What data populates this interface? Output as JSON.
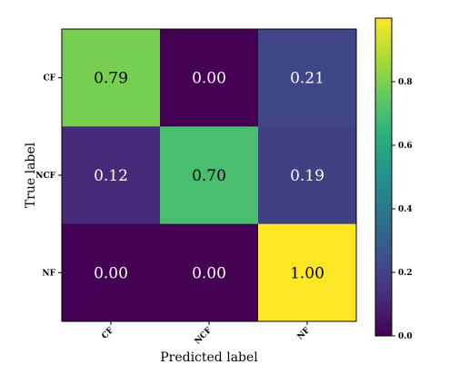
{
  "chart_data": {
    "type": "heatmap",
    "title": "",
    "xlabel": "Predicted label",
    "ylabel": "True label",
    "x_categories": [
      "CF",
      "NCF",
      "NF"
    ],
    "y_categories": [
      "CF",
      "NCF",
      "NF"
    ],
    "values": [
      [
        0.79,
        0.0,
        0.21
      ],
      [
        0.12,
        0.7,
        0.19
      ],
      [
        0.0,
        0.0,
        1.0
      ]
    ],
    "cell_labels": [
      [
        "0.79",
        "0.00",
        "0.21"
      ],
      [
        "0.12",
        "0.70",
        "0.19"
      ],
      [
        "0.00",
        "0.00",
        "1.00"
      ]
    ],
    "colormap": "viridis",
    "colorbar": {
      "range": [
        0.0,
        1.0
      ],
      "ticks": [
        "0.0",
        "0.2",
        "0.4",
        "0.6",
        "0.8"
      ],
      "tick_values": [
        0.0,
        0.2,
        0.4,
        0.6,
        0.8
      ]
    },
    "grid": false,
    "legend": "none"
  }
}
